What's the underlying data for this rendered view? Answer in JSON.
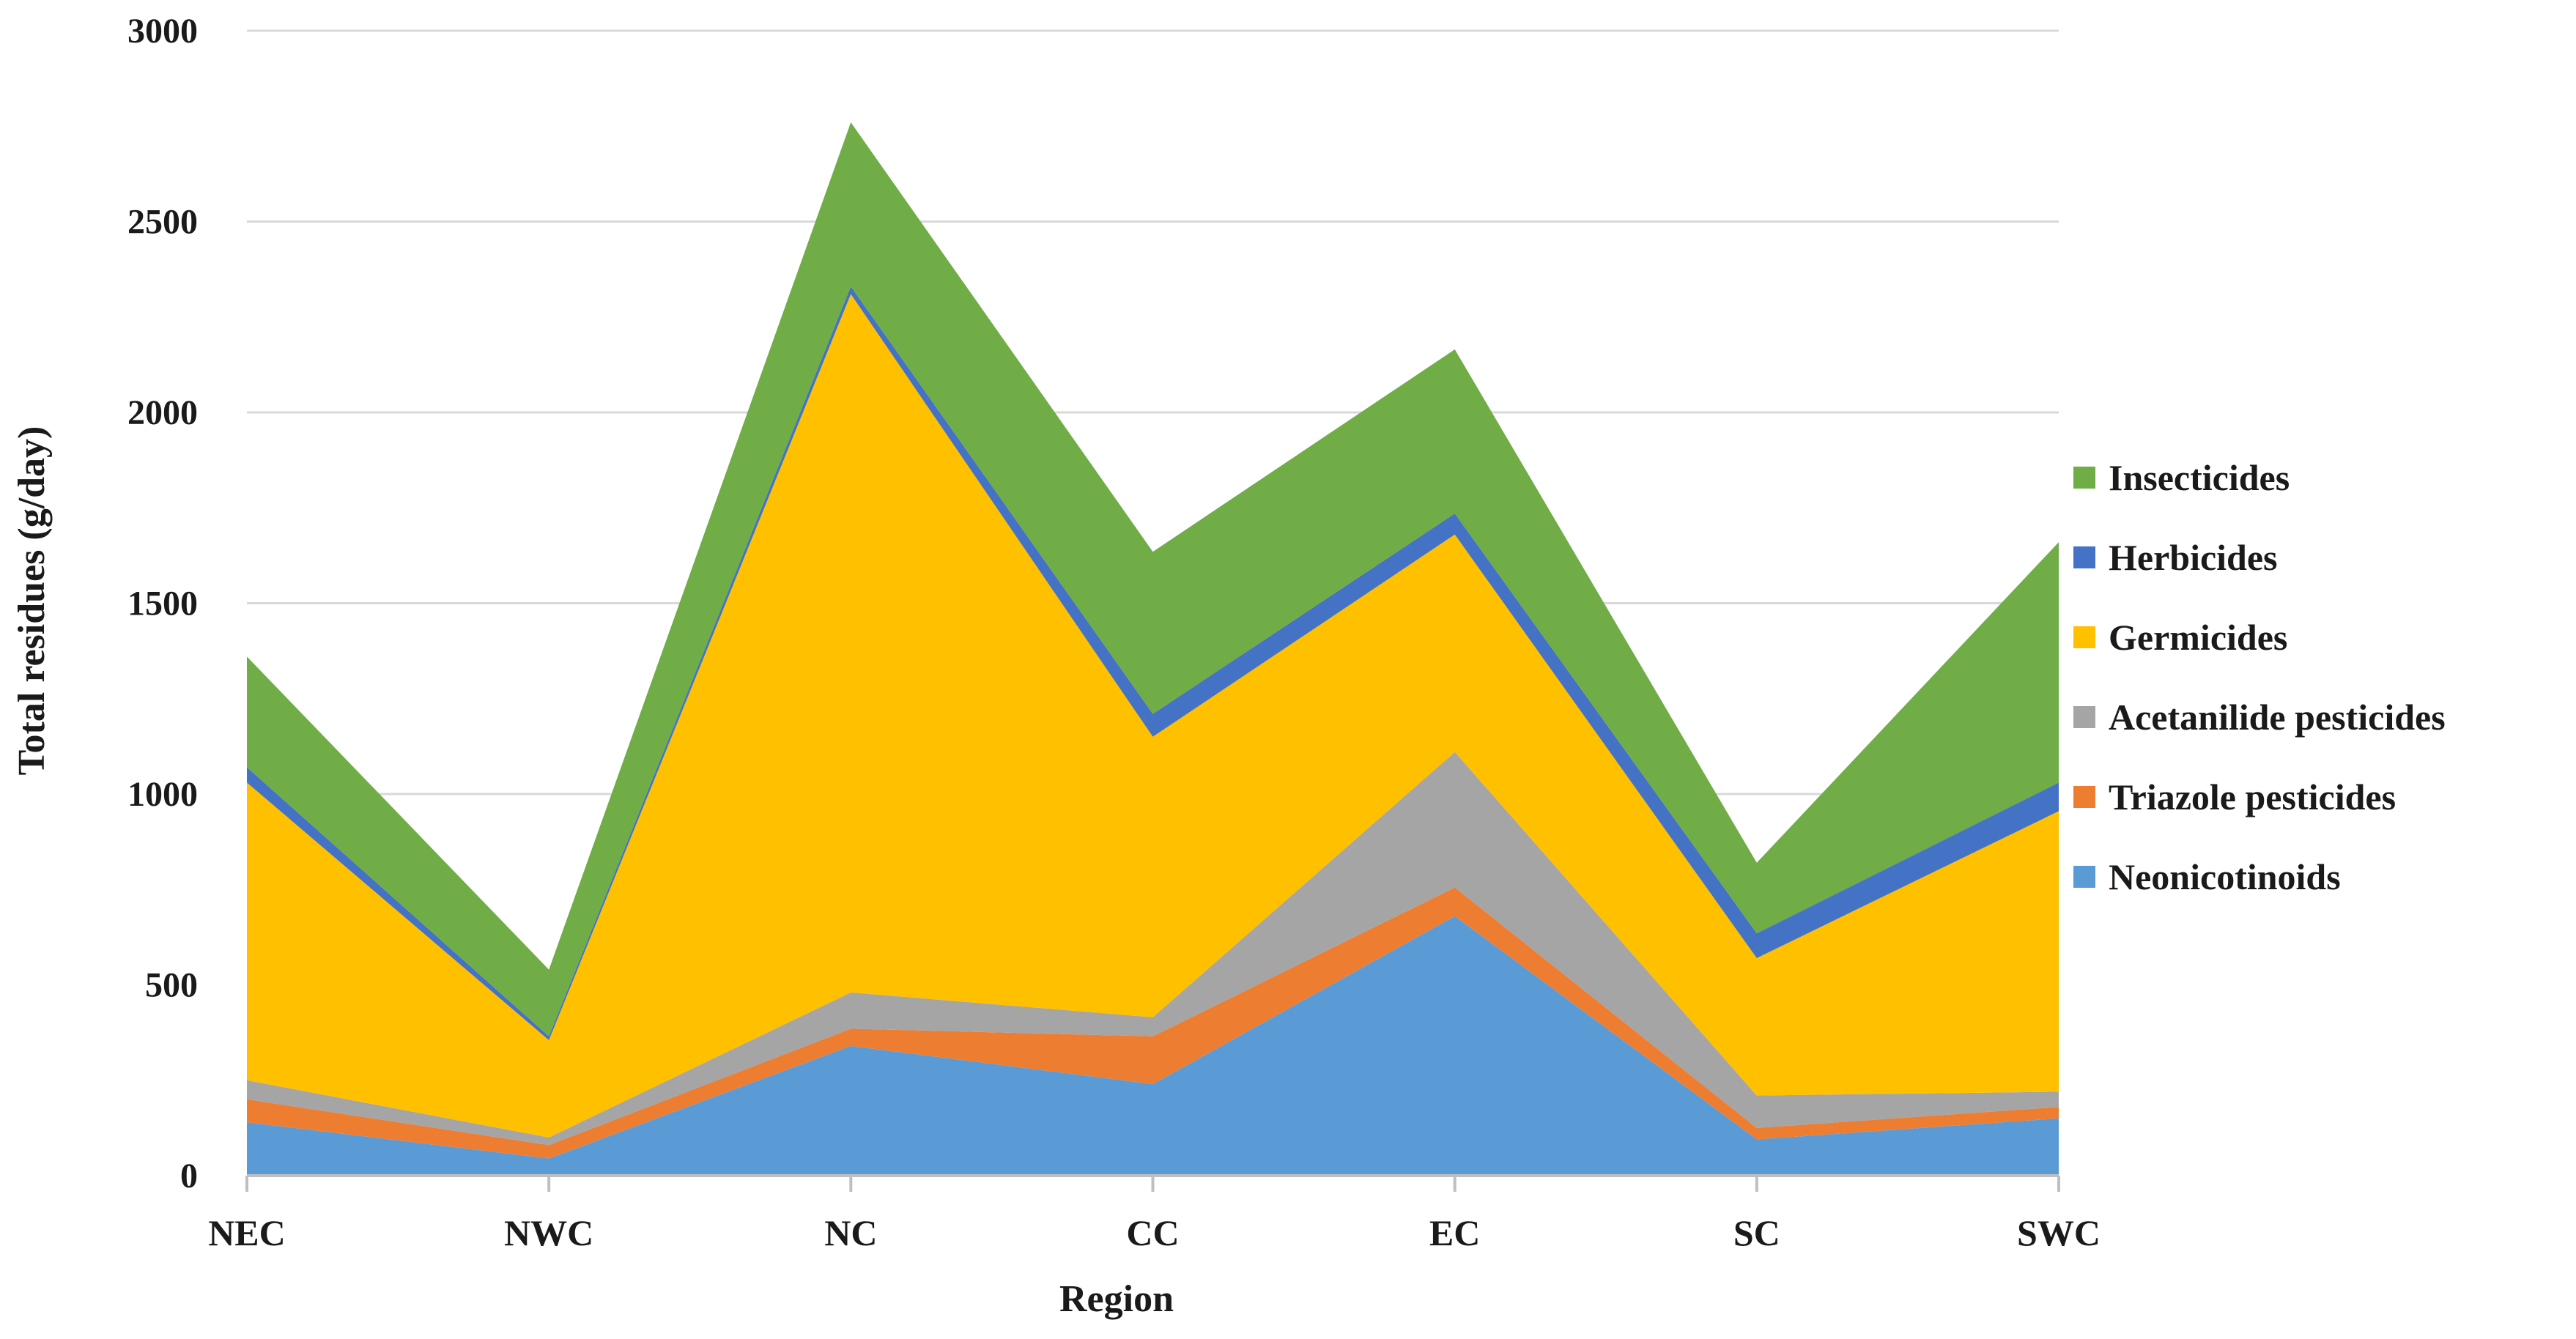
{
  "chart_data": {
    "type": "area",
    "stacked": true,
    "title": "",
    "xlabel": "Region",
    "ylabel": "Total residues (g/day)",
    "categories": [
      "NEC",
      "NWC",
      "NC",
      "CC",
      "EC",
      "SC",
      "SWC"
    ],
    "ylim": [
      0,
      3000
    ],
    "yticks": [
      "0",
      "500",
      "1000",
      "1500",
      "2000",
      "2500",
      "3000"
    ],
    "grid": true,
    "legend_position": "right",
    "series": [
      {
        "name": "Neonicotinoids",
        "color": "#5B9BD5",
        "values": [
          140,
          45,
          340,
          240,
          680,
          95,
          150
        ]
      },
      {
        "name": "Triazole pesticides",
        "color": "#ED7D31",
        "values": [
          60,
          35,
          45,
          125,
          75,
          30,
          30
        ]
      },
      {
        "name": "Acetanilide pesticides",
        "color": "#A5A5A5",
        "values": [
          50,
          20,
          95,
          50,
          355,
          85,
          40
        ]
      },
      {
        "name": "Germicides",
        "color": "#FFC000",
        "values": [
          780,
          255,
          1830,
          735,
          570,
          360,
          735
        ]
      },
      {
        "name": "Herbicides",
        "color": "#4472C4",
        "values": [
          40,
          10,
          20,
          60,
          55,
          65,
          75
        ]
      },
      {
        "name": "Insecticides",
        "color": "#70AD47",
        "values": [
          290,
          175,
          430,
          425,
          430,
          185,
          630
        ]
      }
    ]
  }
}
